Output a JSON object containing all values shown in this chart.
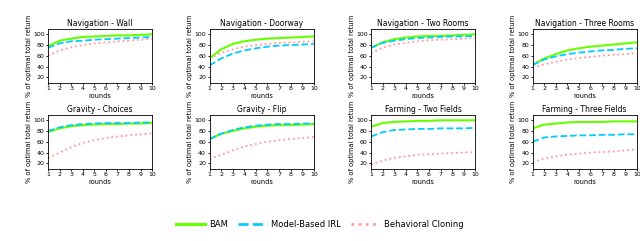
{
  "subplots": [
    {
      "title": "Navigation - Wall",
      "bam": [
        78,
        88,
        92,
        95,
        96,
        97,
        98,
        98,
        99,
        100
      ],
      "mbirl": [
        75,
        83,
        87,
        88,
        90,
        91,
        92,
        93,
        94,
        95
      ],
      "bc": [
        60,
        70,
        76,
        80,
        83,
        85,
        87,
        88,
        90,
        92
      ]
    },
    {
      "title": "Navigation - Doorway",
      "bam": [
        55,
        72,
        82,
        87,
        90,
        92,
        93,
        94,
        95,
        96
      ],
      "mbirl": [
        42,
        55,
        64,
        70,
        74,
        77,
        79,
        80,
        81,
        82
      ],
      "bc": [
        55,
        65,
        72,
        77,
        80,
        82,
        84,
        85,
        86,
        87
      ]
    },
    {
      "title": "Navigation - Two Rooms",
      "bam": [
        75,
        85,
        91,
        94,
        96,
        97,
        97,
        98,
        99,
        100
      ],
      "mbirl": [
        75,
        84,
        88,
        91,
        93,
        94,
        95,
        96,
        96,
        97
      ],
      "bc": [
        65,
        75,
        81,
        84,
        87,
        89,
        90,
        91,
        92,
        93
      ]
    },
    {
      "title": "Navigation - Three Rooms",
      "bam": [
        43,
        55,
        63,
        70,
        74,
        77,
        79,
        81,
        83,
        85
      ],
      "mbirl": [
        43,
        53,
        59,
        63,
        66,
        68,
        70,
        71,
        73,
        74
      ],
      "bc": [
        38,
        44,
        49,
        53,
        56,
        58,
        60,
        62,
        63,
        65
      ]
    },
    {
      "title": "Gravity - Choices",
      "bam": [
        78,
        85,
        89,
        91,
        92,
        93,
        93,
        94,
        94,
        95
      ],
      "mbirl": [
        80,
        87,
        91,
        93,
        94,
        95,
        95,
        95,
        96,
        96
      ],
      "bc": [
        30,
        40,
        50,
        58,
        63,
        67,
        70,
        72,
        74,
        76
      ]
    },
    {
      "title": "Gravity - Flip",
      "bam": [
        65,
        75,
        80,
        85,
        88,
        90,
        91,
        91,
        92,
        93
      ],
      "mbirl": [
        65,
        75,
        82,
        87,
        90,
        92,
        93,
        93,
        94,
        94
      ],
      "bc": [
        28,
        36,
        44,
        51,
        56,
        60,
        63,
        65,
        67,
        69
      ]
    },
    {
      "title": "Farming - Two Fields",
      "bam": [
        88,
        95,
        97,
        98,
        99,
        99,
        100,
        100,
        100,
        100
      ],
      "mbirl": [
        70,
        78,
        82,
        83,
        84,
        84,
        85,
        85,
        85,
        86
      ],
      "bc": [
        18,
        25,
        30,
        33,
        36,
        37,
        38,
        39,
        40,
        41
      ]
    },
    {
      "title": "Farming - Three Fields",
      "bam": [
        85,
        92,
        94,
        96,
        97,
        97,
        97,
        98,
        98,
        98
      ],
      "mbirl": [
        60,
        68,
        70,
        71,
        72,
        72,
        73,
        73,
        74,
        74
      ],
      "bc": [
        22,
        29,
        33,
        36,
        38,
        40,
        41,
        42,
        44,
        46
      ]
    }
  ],
  "x": [
    1,
    2,
    3,
    4,
    5,
    6,
    7,
    8,
    9,
    10
  ],
  "colors": {
    "bam": "#66ff00",
    "mbirl": "#00ccff",
    "bc": "#ff9999"
  },
  "linestyles": {
    "bam": "-",
    "mbirl": "--",
    "bc": ":"
  },
  "linewidths": {
    "bam": 1.5,
    "mbirl": 1.3,
    "bc": 1.3
  },
  "ylabel": "% of optimal total return",
  "xlabel": "rounds",
  "ylim": [
    10,
    110
  ],
  "yticks": [
    20,
    40,
    60,
    80,
    100
  ],
  "xticks": [
    1,
    2,
    3,
    4,
    5,
    6,
    7,
    8,
    9,
    10
  ],
  "legend_labels": [
    "BAM",
    "Model-Based IRL",
    "Behavioral Cloning"
  ],
  "title_fontsize": 5.5,
  "label_fontsize": 4.8,
  "tick_fontsize": 4.5,
  "legend_fontsize": 6.0
}
